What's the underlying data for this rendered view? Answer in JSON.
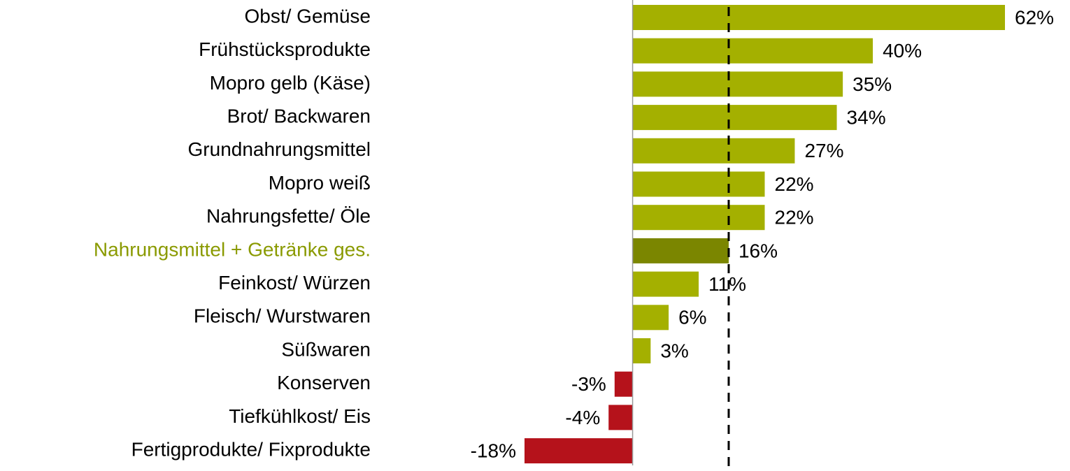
{
  "chart_data": {
    "type": "barh",
    "categories": [
      "Obst/ Gemüse",
      "Frühstücksprodukte",
      "Mopro gelb (Käse)",
      "Brot/ Backwaren",
      "Grundnahrungsmittel",
      "Mopro weiß",
      "Nahrungsfette/ Öle",
      "Nahrungsmittel + Getränke ges.",
      "Feinkost/ Würzen",
      "Fleisch/ Wurstwaren",
      "Süßwaren",
      "Konserven",
      "Tiefkühlkost/ Eis",
      "Fertigprodukte/ Fixprodukte"
    ],
    "values": [
      62,
      40,
      35,
      34,
      27,
      22,
      22,
      16,
      11,
      6,
      3,
      -3,
      -4,
      -18
    ],
    "value_labels": [
      "62%",
      "40%",
      "35%",
      "34%",
      "27%",
      "22%",
      "22%",
      "16%",
      "11%",
      "6%",
      "3%",
      "-3%",
      "-4%",
      "-18%"
    ],
    "colors": [
      "#a4b000",
      "#a4b000",
      "#a4b000",
      "#a4b000",
      "#a4b000",
      "#a4b000",
      "#a4b000",
      "#7b8600",
      "#a4b000",
      "#a4b000",
      "#a4b000",
      "#b5121b",
      "#b5121b",
      "#b5121b"
    ],
    "label_colors": [
      "#000000",
      "#000000",
      "#000000",
      "#000000",
      "#000000",
      "#000000",
      "#000000",
      "#8a9a00",
      "#000000",
      "#000000",
      "#000000",
      "#000000",
      "#000000",
      "#000000"
    ],
    "reference_line": 16,
    "xlim": [
      -18,
      62
    ]
  }
}
